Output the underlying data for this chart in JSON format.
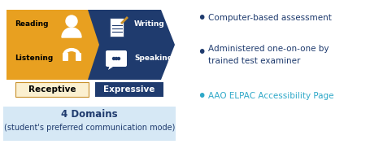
{
  "fig_width": 4.56,
  "fig_height": 1.77,
  "dpi": 100,
  "bg_color": "#ffffff",
  "receptive_color": "#E8A020",
  "expressive_color": "#1F3B6E",
  "receptive_text": "Receptive",
  "expressive_text": "Expressive",
  "receptive_box_color": "#FBF0D0",
  "receptive_box_edge": "#C8902A",
  "reading_label": "Reading",
  "listening_label": "Listening",
  "writing_label": "Writing",
  "speaking_label": "Speaking",
  "box_bg_color": "#D6E8F5",
  "box_title": "4 Domains",
  "box_subtitle": "(student's preferred communication mode)",
  "bullet1": "Computer-based assessment",
  "bullet2_line1": "Administered one-on-one by",
  "bullet2_line2": "trained test examiner",
  "bullet3": "AAO ELPAC Accessibility Page",
  "bullet_color": "#1F3B6E",
  "link_color": "#2EA8C8",
  "bullet_dot_color": "#1F3B6E"
}
